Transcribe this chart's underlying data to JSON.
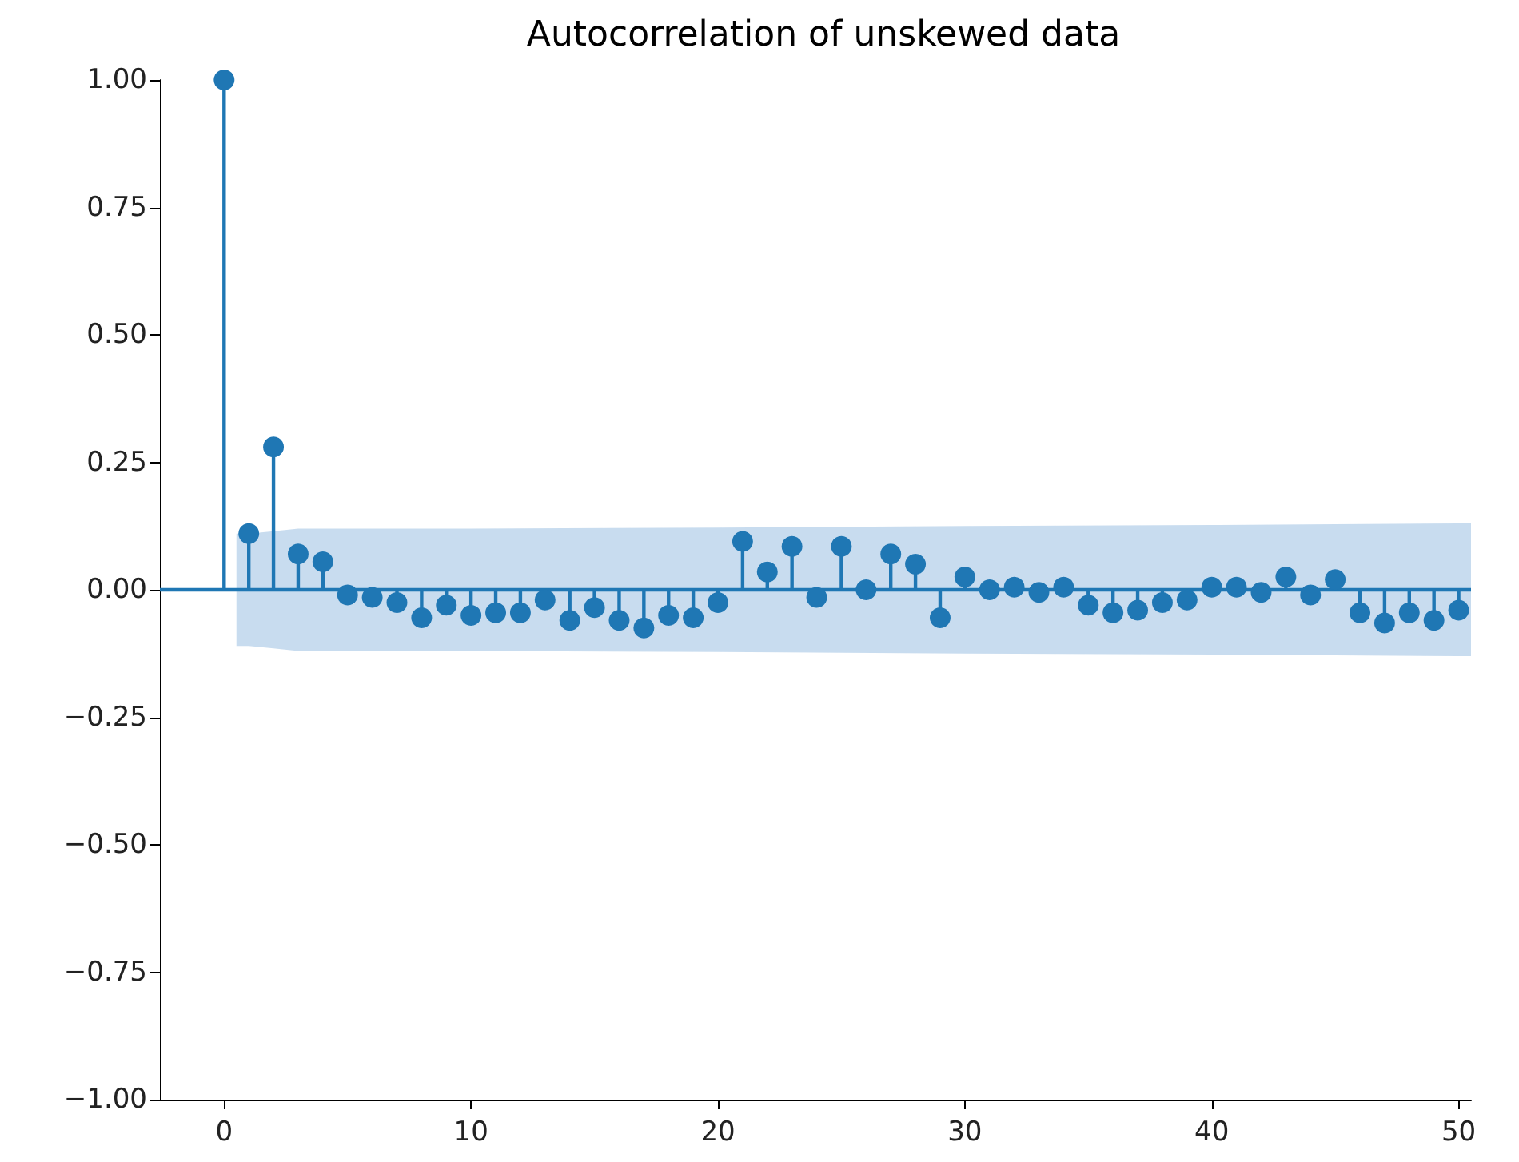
{
  "chart_data": {
    "type": "lollipop",
    "title": "Autocorrelation of unskewed data",
    "x": [
      0,
      1,
      2,
      3,
      4,
      5,
      6,
      7,
      8,
      9,
      10,
      11,
      12,
      13,
      14,
      15,
      16,
      17,
      18,
      19,
      20,
      21,
      22,
      23,
      24,
      25,
      26,
      27,
      28,
      29,
      30,
      31,
      32,
      33,
      34,
      35,
      36,
      37,
      38,
      39,
      40,
      41,
      42,
      43,
      44,
      45,
      46,
      47,
      48,
      49,
      50
    ],
    "series": [
      {
        "color": "#1f77b4",
        "values": [
          1.0,
          0.11,
          0.28,
          0.07,
          0.055,
          -0.01,
          -0.015,
          -0.025,
          -0.055,
          -0.03,
          -0.05,
          -0.045,
          -0.045,
          -0.02,
          -0.06,
          -0.035,
          -0.06,
          -0.075,
          -0.05,
          -0.055,
          -0.025,
          0.095,
          0.035,
          0.085,
          -0.015,
          0.085,
          0.0,
          0.07,
          0.05,
          -0.055,
          0.025,
          0.0,
          0.005,
          -0.005,
          0.005,
          -0.03,
          -0.045,
          -0.04,
          -0.025,
          -0.02,
          0.005,
          0.005,
          -0.005,
          0.025,
          -0.01,
          0.02,
          -0.045,
          -0.065,
          -0.045,
          -0.06,
          -0.04
        ]
      },
      {
        "type": "area",
        "color": "#c5daee",
        "x": [
          0.5,
          1,
          2,
          3,
          5,
          10,
          20,
          30,
          40,
          50,
          50.5
        ],
        "values": [
          null,
          null,
          null,
          null,
          null,
          null,
          null,
          null,
          null,
          null,
          null
        ],
        "upper": [
          0.11,
          0.11,
          0.115,
          0.12,
          0.12,
          0.12,
          0.122,
          0.125,
          0.127,
          0.13,
          0.13
        ],
        "lower": [
          -0.11,
          -0.11,
          -0.115,
          -0.12,
          -0.12,
          -0.12,
          -0.122,
          -0.125,
          -0.127,
          -0.13,
          -0.13
        ]
      }
    ],
    "ref_lines": [
      {
        "axis": "y",
        "value": 0,
        "color": "#1f77b4"
      }
    ],
    "xlim": [
      -2.6,
      50.5
    ],
    "xticks": [
      0,
      10,
      20,
      30,
      40,
      50
    ],
    "ylim": [
      -1.0,
      1.0
    ],
    "yticks": [
      {
        "value": -1.0,
        "label": "−1.00"
      },
      {
        "value": -0.75,
        "label": "−0.75"
      },
      {
        "value": -0.5,
        "label": "−0.50"
      },
      {
        "value": -0.25,
        "label": "−0.25"
      },
      {
        "value": 0,
        "label": "0.00"
      },
      {
        "value": 0.25,
        "label": "0.25"
      },
      {
        "value": 0.5,
        "label": "0.50"
      },
      {
        "value": 0.75,
        "label": "0.75"
      },
      {
        "value": 1.0,
        "label": "1.00"
      }
    ],
    "marker": "circle"
  }
}
